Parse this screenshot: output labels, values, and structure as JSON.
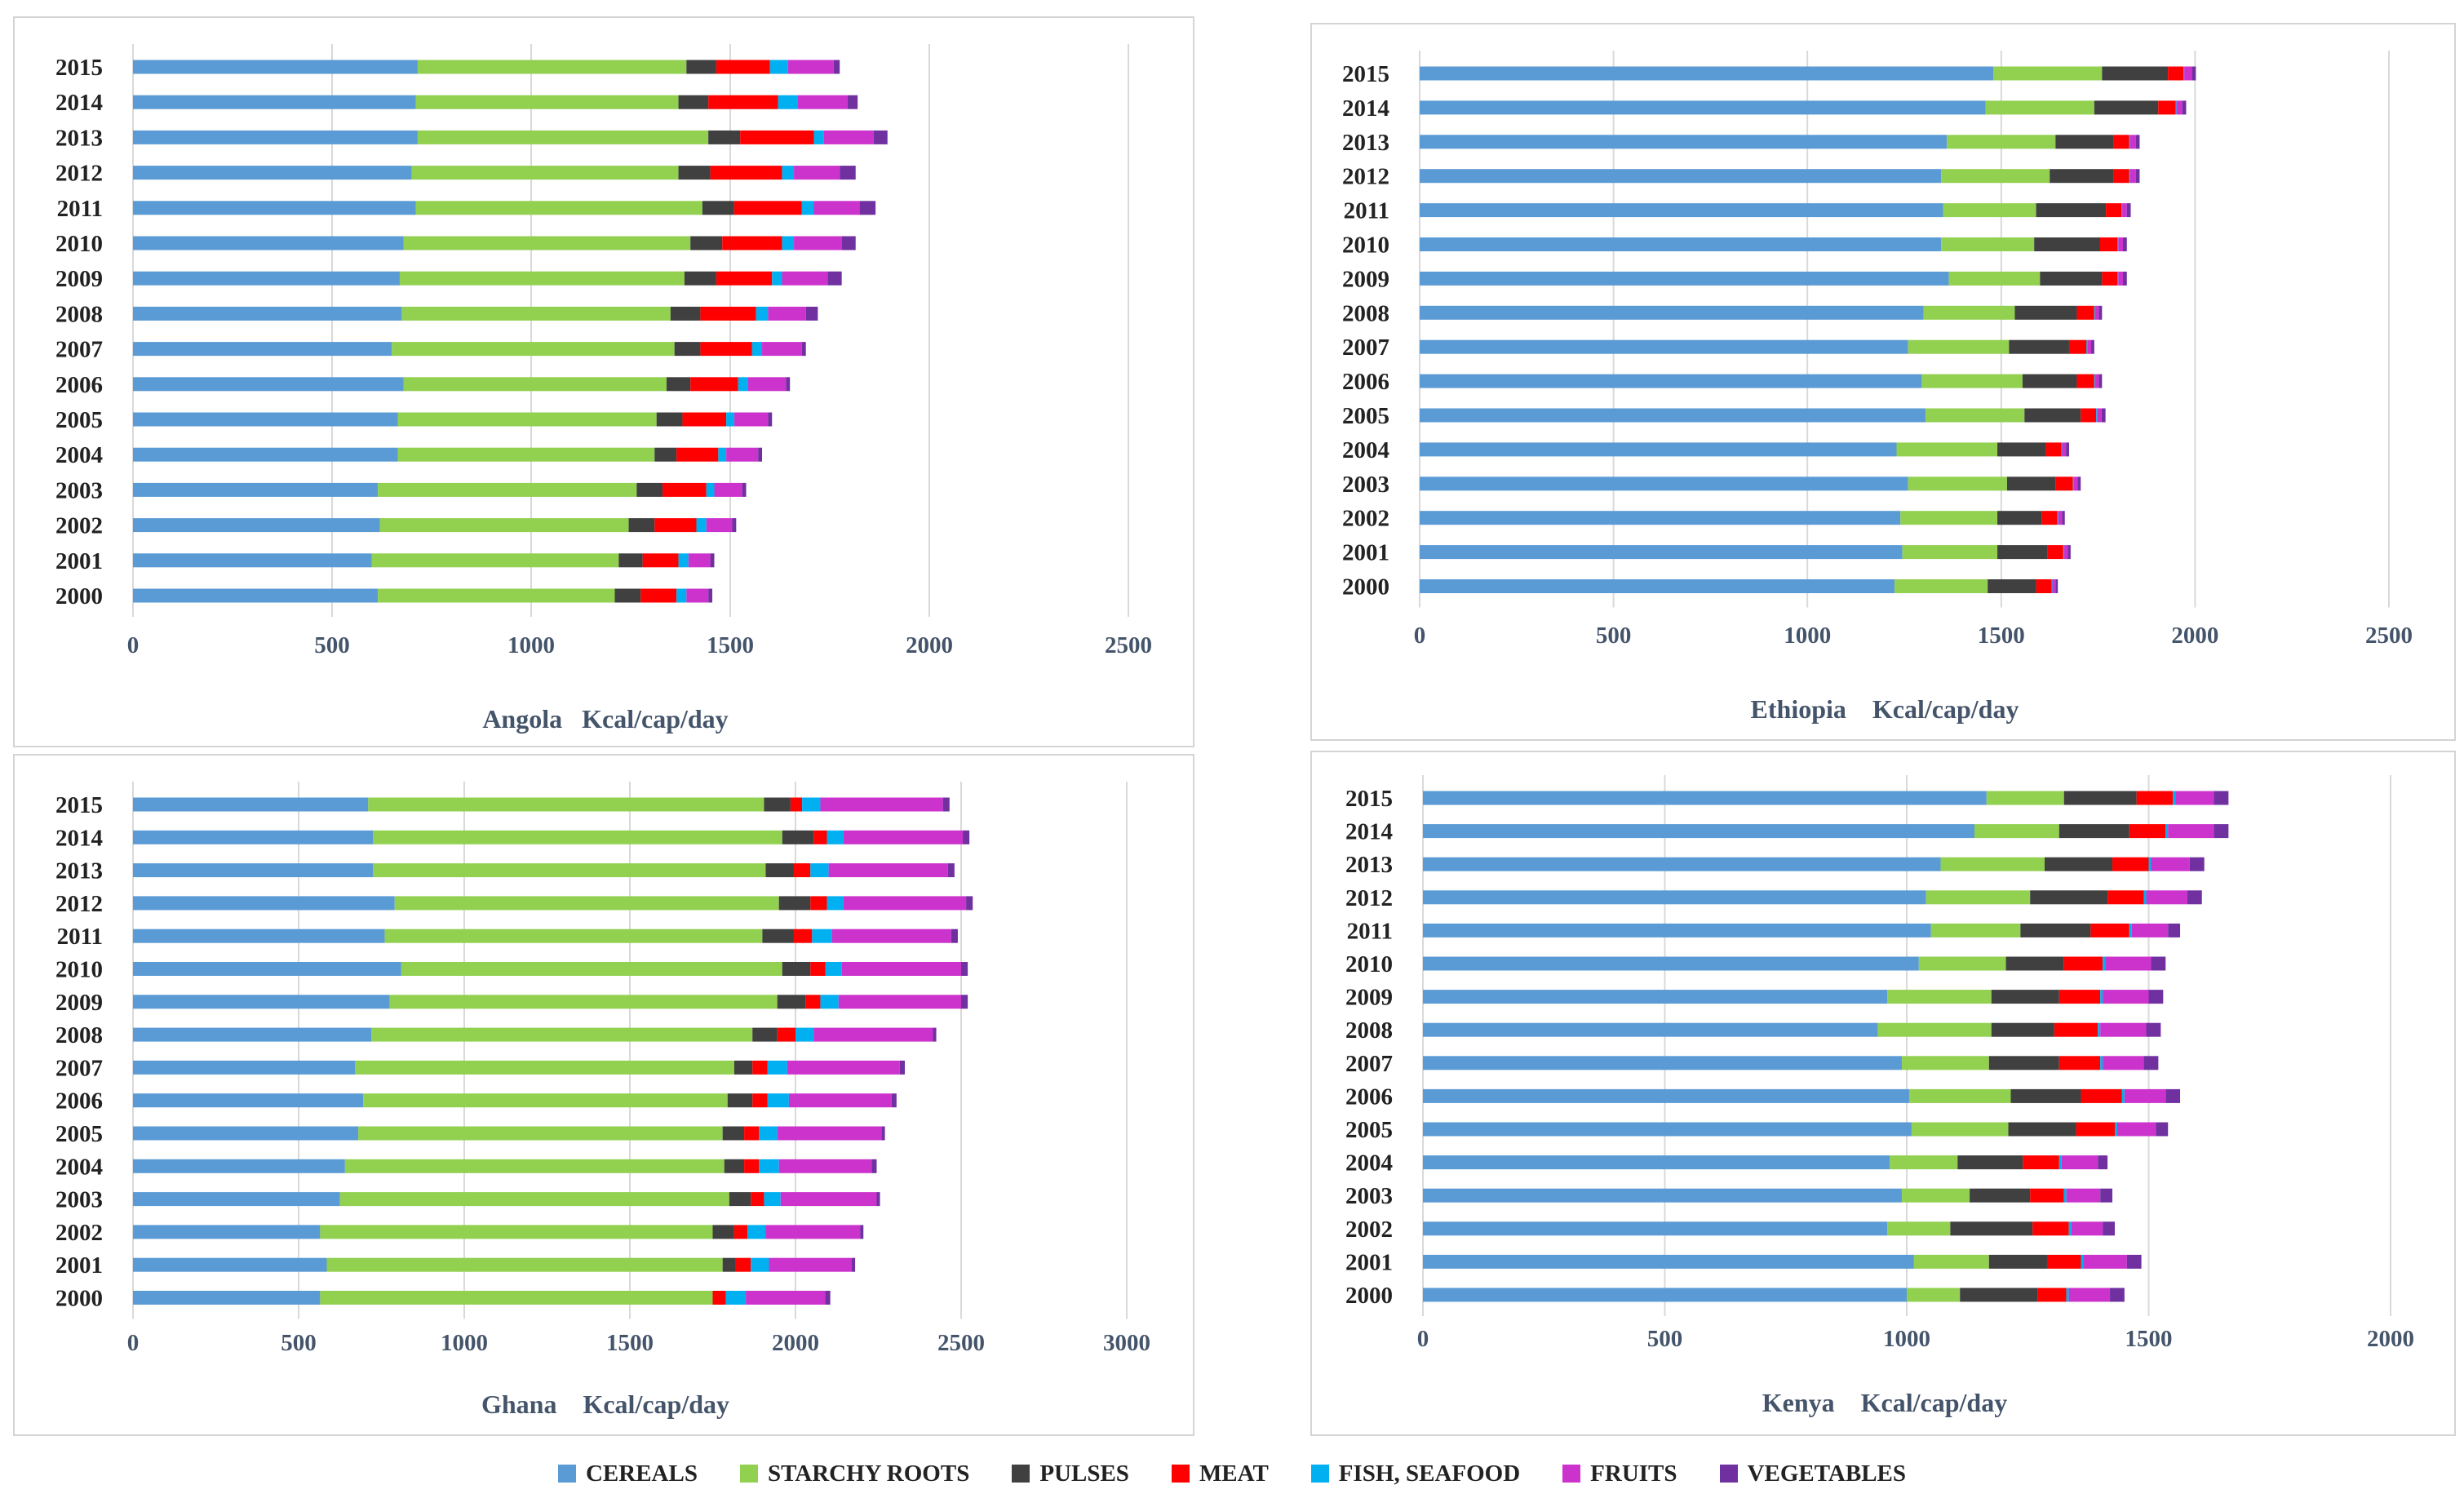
{
  "legend": {
    "categories": [
      "CEREALS",
      "STARCHY ROOTS",
      "PULSES",
      "MEAT",
      "FISH, SEAFOOD",
      "FRUITS",
      "VEGETABLES"
    ],
    "colors": [
      "#5b9bd5",
      "#92d050",
      "#404040",
      "#ff0000",
      "#00b0f0",
      "#cc33cc",
      "#7030a0"
    ]
  },
  "chart_data": [
    {
      "type": "bar",
      "orientation": "horizontal",
      "stacked": true,
      "title": "Angola   Kcal/cap/day",
      "categories": [
        "2015",
        "2014",
        "2013",
        "2012",
        "2011",
        "2010",
        "2009",
        "2008",
        "2007",
        "2006",
        "2005",
        "2004",
        "2003",
        "2002",
        "2001",
        "2000"
      ],
      "xlim": [
        0,
        2500
      ],
      "xticks": [
        0,
        500,
        1000,
        1500,
        2000,
        2500
      ],
      "series": [
        {
          "name": "CEREALS",
          "values": [
            715,
            710,
            715,
            700,
            710,
            680,
            670,
            675,
            650,
            680,
            665,
            665,
            615,
            620,
            600,
            615
          ]
        },
        {
          "name": "STARCHY ROOTS",
          "values": [
            675,
            660,
            730,
            670,
            720,
            720,
            715,
            675,
            710,
            660,
            650,
            645,
            650,
            625,
            620,
            595
          ]
        },
        {
          "name": "PULSES",
          "values": [
            75,
            75,
            80,
            80,
            80,
            80,
            80,
            75,
            65,
            60,
            65,
            55,
            65,
            65,
            60,
            65
          ]
        },
        {
          "name": "MEAT",
          "values": [
            135,
            175,
            185,
            180,
            170,
            150,
            140,
            140,
            130,
            120,
            110,
            105,
            110,
            105,
            90,
            90
          ]
        },
        {
          "name": "FISH, SEAFOOD",
          "values": [
            45,
            50,
            25,
            30,
            30,
            30,
            25,
            30,
            25,
            25,
            20,
            20,
            20,
            25,
            25,
            25
          ]
        },
        {
          "name": "FRUITS",
          "values": [
            115,
            125,
            125,
            115,
            115,
            120,
            115,
            95,
            100,
            95,
            85,
            80,
            70,
            65,
            55,
            55
          ]
        },
        {
          "name": "VEGETABLES",
          "values": [
            15,
            25,
            35,
            40,
            40,
            35,
            35,
            30,
            10,
            10,
            10,
            10,
            10,
            10,
            10,
            10
          ]
        }
      ]
    },
    {
      "type": "bar",
      "orientation": "horizontal",
      "stacked": true,
      "title": "Ethiopia    Kcal/cap/day",
      "categories": [
        "2015",
        "2014",
        "2013",
        "2012",
        "2011",
        "2010",
        "2009",
        "2008",
        "2007",
        "2006",
        "2005",
        "2004",
        "2003",
        "2002",
        "2001",
        "2000"
      ],
      "xlim": [
        0,
        2500
      ],
      "xticks": [
        0,
        500,
        1000,
        1500,
        2000,
        2500
      ],
      "series": [
        {
          "name": "CEREALS",
          "values": [
            1480,
            1460,
            1360,
            1345,
            1350,
            1345,
            1365,
            1300,
            1260,
            1295,
            1305,
            1230,
            1260,
            1240,
            1245,
            1225
          ]
        },
        {
          "name": "STARCHY ROOTS",
          "values": [
            280,
            280,
            280,
            280,
            240,
            240,
            235,
            235,
            260,
            260,
            255,
            260,
            255,
            250,
            245,
            240
          ]
        },
        {
          "name": "PULSES",
          "values": [
            170,
            165,
            150,
            165,
            180,
            170,
            160,
            160,
            155,
            140,
            145,
            125,
            125,
            115,
            130,
            125
          ]
        },
        {
          "name": "MEAT",
          "values": [
            40,
            45,
            40,
            40,
            40,
            45,
            40,
            45,
            45,
            45,
            40,
            40,
            45,
            40,
            40,
            40
          ]
        },
        {
          "name": "FISH, SEAFOOD",
          "values": [
            2,
            2,
            2,
            2,
            2,
            2,
            2,
            2,
            2,
            2,
            2,
            2,
            2,
            2,
            2,
            2
          ]
        },
        {
          "name": "FRUITS",
          "values": [
            20,
            15,
            15,
            15,
            12,
            12,
            12,
            10,
            10,
            10,
            12,
            10,
            10,
            10,
            10,
            8
          ]
        },
        {
          "name": "VEGETABLES",
          "values": [
            10,
            10,
            10,
            10,
            10,
            10,
            10,
            8,
            8,
            8,
            10,
            8,
            8,
            7,
            7,
            6
          ]
        }
      ]
    },
    {
      "type": "bar",
      "orientation": "horizontal",
      "stacked": true,
      "title": "Ghana    Kcal/cap/day",
      "categories": [
        "2015",
        "2014",
        "2013",
        "2012",
        "2011",
        "2010",
        "2009",
        "2008",
        "2007",
        "2006",
        "2005",
        "2004",
        "2003",
        "2002",
        "2001",
        "2000"
      ],
      "xlim": [
        0,
        3000
      ],
      "xticks": [
        0,
        500,
        1000,
        1500,
        2000,
        2500,
        3000
      ],
      "series": [
        {
          "name": "CEREALS",
          "values": [
            710,
            725,
            725,
            790,
            760,
            810,
            775,
            720,
            670,
            695,
            680,
            640,
            625,
            565,
            585,
            565
          ]
        },
        {
          "name": "STARCHY ROOTS",
          "values": [
            1195,
            1235,
            1185,
            1160,
            1140,
            1150,
            1170,
            1150,
            1145,
            1100,
            1100,
            1145,
            1175,
            1185,
            1195,
            1185
          ]
        },
        {
          "name": "PULSES",
          "values": [
            80,
            95,
            85,
            95,
            95,
            85,
            85,
            75,
            55,
            75,
            65,
            60,
            65,
            65,
            40,
            0
          ]
        },
        {
          "name": "MEAT",
          "values": [
            35,
            40,
            50,
            50,
            55,
            45,
            45,
            55,
            45,
            45,
            45,
            45,
            40,
            40,
            45,
            40
          ]
        },
        {
          "name": "FISH, SEAFOOD",
          "values": [
            55,
            50,
            55,
            50,
            60,
            50,
            55,
            55,
            60,
            65,
            55,
            60,
            50,
            55,
            55,
            60
          ]
        },
        {
          "name": "FRUITS",
          "values": [
            370,
            360,
            360,
            370,
            360,
            360,
            370,
            360,
            340,
            310,
            315,
            280,
            290,
            285,
            250,
            240
          ]
        },
        {
          "name": "VEGETABLES",
          "values": [
            20,
            20,
            20,
            20,
            20,
            20,
            20,
            10,
            15,
            15,
            10,
            15,
            10,
            10,
            10,
            15
          ]
        }
      ]
    },
    {
      "type": "bar",
      "orientation": "horizontal",
      "stacked": true,
      "title": "Kenya    Kcal/cap/day",
      "categories": [
        "2015",
        "2014",
        "2013",
        "2012",
        "2011",
        "2010",
        "2009",
        "2008",
        "2007",
        "2006",
        "2005",
        "2004",
        "2003",
        "2002",
        "2001",
        "2000"
      ],
      "xlim": [
        0,
        2000
      ],
      "xticks": [
        0,
        500,
        1000,
        1500,
        2000
      ],
      "series": [
        {
          "name": "CEREALS",
          "values": [
            1165,
            1140,
            1070,
            1040,
            1050,
            1025,
            960,
            940,
            990,
            1005,
            1010,
            965,
            990,
            960,
            1015,
            1000
          ]
        },
        {
          "name": "STARCHY ROOTS",
          "values": [
            160,
            175,
            215,
            215,
            185,
            180,
            215,
            235,
            180,
            210,
            200,
            140,
            140,
            130,
            155,
            110
          ]
        },
        {
          "name": "PULSES",
          "values": [
            150,
            145,
            140,
            160,
            145,
            120,
            140,
            130,
            145,
            145,
            140,
            135,
            125,
            170,
            120,
            160
          ]
        },
        {
          "name": "MEAT",
          "values": [
            75,
            75,
            75,
            75,
            80,
            80,
            85,
            90,
            85,
            85,
            80,
            75,
            70,
            75,
            70,
            60
          ]
        },
        {
          "name": "FISH, SEAFOOD",
          "values": [
            5,
            5,
            5,
            5,
            5,
            5,
            5,
            5,
            5,
            5,
            5,
            5,
            5,
            5,
            5,
            5
          ]
        },
        {
          "name": "FRUITS",
          "values": [
            80,
            95,
            80,
            85,
            75,
            95,
            95,
            95,
            85,
            85,
            80,
            75,
            70,
            65,
            90,
            85
          ]
        },
        {
          "name": "VEGETABLES",
          "values": [
            30,
            30,
            30,
            30,
            25,
            30,
            30,
            30,
            30,
            30,
            25,
            20,
            25,
            25,
            30,
            30
          ]
        }
      ]
    }
  ]
}
